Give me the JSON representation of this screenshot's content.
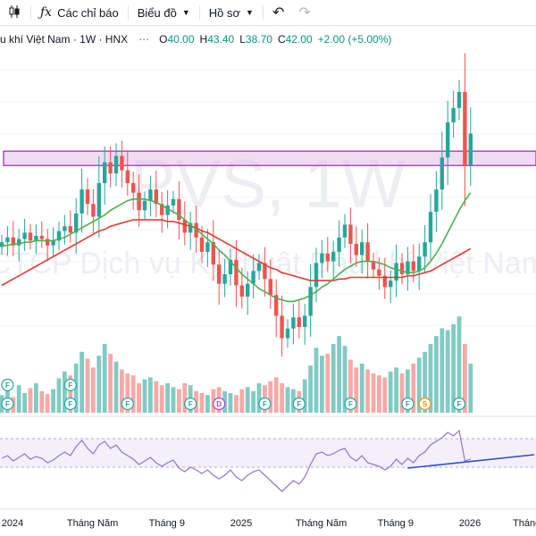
{
  "toolbar": {
    "indicators_label": "Các chỉ báo",
    "chart_label": "Biểu đồ",
    "profile_label": "Hồ sơ",
    "icons": [
      "candles-icon",
      "fx-icon",
      "chevron-down-icon",
      "undo-icon",
      "redo-icon"
    ]
  },
  "legend": {
    "symbol_text": "u khí Việt Nam · 1W · HNX",
    "o_label": "O",
    "o_value": "40.00",
    "h_label": "H",
    "h_value": "43.40",
    "l_label": "L",
    "l_value": "38.70",
    "c_label": "C",
    "c_value": "42.00",
    "change": "+2.00 (+5.00%)"
  },
  "watermark": {
    "line1": "PVS, 1W",
    "line2": "CTCP Dịch vụ Kỹ thuật Dầu khí Việt Nam"
  },
  "colors": {
    "up": "#26a69a",
    "down": "#ef5350",
    "vol_up": "#80cbc4",
    "vol_down": "#f7a9a7",
    "ma_fast": "#4caf50",
    "ma_slow": "#e53935",
    "zone_fill": "#e1bee7",
    "zone_stroke": "#9c27b0",
    "rsi_line": "#9575cd",
    "rsi_band": "#f3effb",
    "trendline": "#2e4fc9"
  },
  "chart_data": {
    "type": "candlestick",
    "interval": "1W",
    "x_axis_labels": [
      "2024",
      "Tháng Năm",
      "Tháng 9",
      "2025",
      "Tháng Năm",
      "Tháng 9",
      "2026",
      "Tháng Năm"
    ],
    "price_ylim": [
      28,
      47
    ],
    "candles_close": [
      35.2,
      35.5,
      35.0,
      35.4,
      35.8,
      35.3,
      35.6,
      35.4,
      35.0,
      35.3,
      35.9,
      36.2,
      35.8,
      37.0,
      38.5,
      37.6,
      36.8,
      38.9,
      40.2,
      39.5,
      40.6,
      39.7,
      38.9,
      38.3,
      37.2,
      37.8,
      38.5,
      37.6,
      36.9,
      37.5,
      37.9,
      36.6,
      35.8,
      36.4,
      35.5,
      34.6,
      35.2,
      33.8,
      32.6,
      33.2,
      34.1,
      32.5,
      31.8,
      32.6,
      33.4,
      33.9,
      32.9,
      31.9,
      30.6,
      29.2,
      29.8,
      30.5,
      29.9,
      30.6,
      32.4,
      33.9,
      34.5,
      34.0,
      34.6,
      35.5,
      36.3,
      35.1,
      34.4,
      35.2,
      34.0,
      33.5,
      33.1,
      32.4,
      32.8,
      33.9,
      33.2,
      34.0,
      33.4,
      34.3,
      35.2,
      37.1,
      38.5,
      40.5,
      42.7,
      43.6,
      44.6,
      40.0,
      42.0
    ],
    "ma_fast": [
      35.0,
      35.0,
      35.1,
      35.1,
      35.2,
      35.2,
      35.3,
      35.3,
      35.3,
      35.3,
      35.4,
      35.5,
      35.7,
      35.9,
      36.1,
      36.3,
      36.5,
      36.7,
      36.9,
      37.2,
      37.4,
      37.6,
      37.8,
      37.9,
      37.9,
      37.9,
      37.8,
      37.7,
      37.5,
      37.3,
      37.1,
      36.9,
      36.6,
      36.3,
      36.0,
      35.7,
      35.4,
      35.1,
      34.7,
      34.4,
      34.0,
      33.6,
      33.2,
      32.9,
      32.6,
      32.3,
      32.1,
      31.9,
      31.7,
      31.6,
      31.5,
      31.5,
      31.6,
      31.7,
      31.9,
      32.1,
      32.4,
      32.6,
      32.9,
      33.2,
      33.5,
      33.7,
      33.9,
      34.0,
      34.0,
      34.0,
      33.9,
      33.8,
      33.6,
      33.5,
      33.4,
      33.3,
      33.3,
      33.4,
      33.6,
      34.0,
      34.5,
      35.1,
      35.8,
      36.5,
      37.2,
      37.8,
      38.3
    ],
    "ma_slow": [
      32.5,
      32.7,
      32.9,
      33.1,
      33.3,
      33.5,
      33.7,
      33.9,
      34.1,
      34.3,
      34.5,
      34.7,
      34.9,
      35.1,
      35.3,
      35.5,
      35.7,
      35.9,
      36.0,
      36.2,
      36.3,
      36.4,
      36.5,
      36.6,
      36.6,
      36.6,
      36.6,
      36.6,
      36.6,
      36.5,
      36.5,
      36.4,
      36.3,
      36.2,
      36.1,
      35.9,
      35.8,
      35.6,
      35.4,
      35.2,
      35.0,
      34.8,
      34.6,
      34.4,
      34.2,
      34.0,
      33.8,
      33.6,
      33.5,
      33.3,
      33.2,
      33.1,
      33.0,
      32.9,
      32.8,
      32.8,
      32.8,
      32.8,
      32.8,
      32.9,
      32.9,
      33.0,
      33.0,
      33.0,
      33.0,
      33.0,
      33.0,
      33.0,
      33.0,
      33.0,
      33.0,
      33.1,
      33.1,
      33.2,
      33.3,
      33.4,
      33.6,
      33.8,
      34.0,
      34.2,
      34.4,
      34.6,
      34.8
    ],
    "volume": [
      18,
      22,
      16,
      28,
      20,
      25,
      30,
      22,
      19,
      24,
      35,
      42,
      38,
      50,
      62,
      55,
      46,
      58,
      70,
      60,
      52,
      44,
      40,
      38,
      30,
      34,
      36,
      32,
      28,
      30,
      26,
      24,
      30,
      28,
      22,
      20,
      18,
      24,
      26,
      22,
      20,
      18,
      24,
      26,
      22,
      30,
      28,
      32,
      36,
      30,
      26,
      24,
      22,
      34,
      48,
      66,
      58,
      60,
      70,
      78,
      68,
      54,
      46,
      50,
      44,
      40,
      38,
      36,
      42,
      46,
      40,
      44,
      50,
      56,
      62,
      70,
      78,
      86,
      84,
      90,
      98,
      70,
      50
    ],
    "events": [
      {
        "i": 1,
        "label": "F",
        "row": 1
      },
      {
        "i": 1,
        "label": "F",
        "row": 2
      },
      {
        "i": 12,
        "label": "F",
        "row": 1
      },
      {
        "i": 12,
        "label": "F",
        "row": 2
      },
      {
        "i": 22,
        "label": "F",
        "row": 2
      },
      {
        "i": 33,
        "label": "F",
        "row": 2
      },
      {
        "i": 38,
        "label": "D",
        "row": 2
      },
      {
        "i": 46,
        "label": "F",
        "row": 2
      },
      {
        "i": 52,
        "label": "F",
        "row": 2
      },
      {
        "i": 61,
        "label": "F",
        "row": 2
      },
      {
        "i": 71,
        "label": "F",
        "row": 2
      },
      {
        "i": 74,
        "label": "S",
        "row": 2
      },
      {
        "i": 80,
        "label": "F",
        "row": 2
      }
    ],
    "support_zone": [
      40.0,
      40.9
    ],
    "rsi": [
      55,
      58,
      52,
      56,
      60,
      54,
      57,
      55,
      50,
      53,
      58,
      62,
      58,
      68,
      75,
      66,
      60,
      70,
      74,
      66,
      70,
      62,
      58,
      54,
      48,
      52,
      56,
      50,
      46,
      50,
      53,
      44,
      40,
      45,
      42,
      38,
      42,
      36,
      32,
      36,
      42,
      34,
      30,
      36,
      40,
      42,
      36,
      30,
      24,
      18,
      24,
      30,
      26,
      34,
      48,
      60,
      62,
      58,
      60,
      64,
      66,
      56,
      52,
      58,
      50,
      48,
      46,
      42,
      46,
      54,
      48,
      55,
      50,
      58,
      62,
      70,
      74,
      78,
      84,
      80,
      86,
      52,
      54
    ],
    "rsi_trendline": [
      [
        71,
        44
      ],
      [
        102,
        59
      ]
    ]
  }
}
